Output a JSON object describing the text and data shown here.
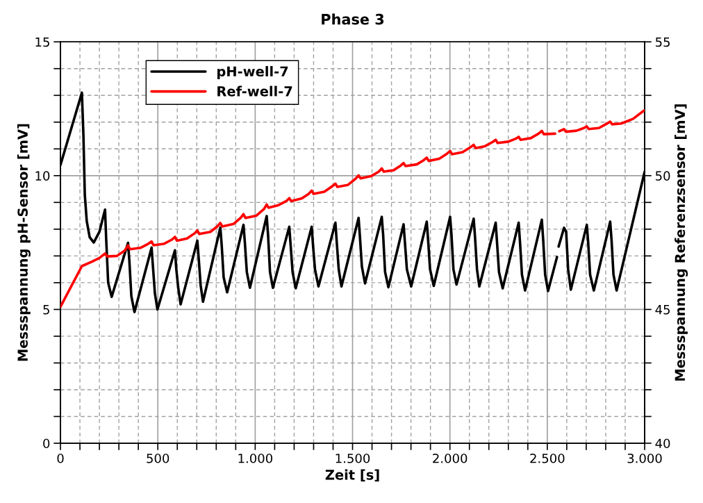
{
  "chart_data": {
    "type": "line",
    "title": "Phase 3",
    "xlabel": "Zeit [s]",
    "ylabel": "Messspannung pH-Sensor [mV]",
    "y2label": "Messspannung Referenzsensor [mV]",
    "xlim": [
      0,
      3000
    ],
    "ylim": [
      0,
      15
    ],
    "y2lim": [
      40,
      55
    ],
    "xticks": [
      0,
      {
        "value": 100,
        "label": null
      },
      {
        "value": 200,
        "label": null
      },
      {
        "value": 300,
        "label": null
      },
      {
        "value": 400,
        "label": null
      },
      500,
      {
        "value": 600,
        "label": null
      },
      {
        "value": 700,
        "label": null
      },
      {
        "value": 800,
        "label": null
      },
      {
        "value": 900,
        "label": null
      },
      {
        "value": 1000,
        "label": "1.000"
      },
      {
        "value": 1100,
        "label": null
      },
      {
        "value": 1200,
        "label": null
      },
      {
        "value": 1300,
        "label": null
      },
      {
        "value": 1400,
        "label": null
      },
      {
        "value": 1500,
        "label": "1.500"
      },
      {
        "value": 1600,
        "label": null
      },
      {
        "value": 1700,
        "label": null
      },
      {
        "value": 1800,
        "label": null
      },
      {
        "value": 1900,
        "label": null
      },
      {
        "value": 2000,
        "label": "2.000"
      },
      {
        "value": 2100,
        "label": null
      },
      {
        "value": 2200,
        "label": null
      },
      {
        "value": 2300,
        "label": null
      },
      {
        "value": 2400,
        "label": null
      },
      {
        "value": 2500,
        "label": "2.500"
      },
      {
        "value": 2600,
        "label": null
      },
      {
        "value": 2700,
        "label": null
      },
      {
        "value": 2800,
        "label": null
      },
      {
        "value": 2900,
        "label": null
      },
      {
        "value": 3000,
        "label": "3.000"
      }
    ],
    "yticks": [
      0,
      {
        "value": 1,
        "label": null
      },
      {
        "value": 2,
        "label": null
      },
      {
        "value": 3,
        "label": null
      },
      {
        "value": 4,
        "label": null
      },
      5,
      {
        "value": 6,
        "label": null
      },
      {
        "value": 7,
        "label": null
      },
      {
        "value": 8,
        "label": null
      },
      {
        "value": 9,
        "label": null
      },
      10,
      {
        "value": 11,
        "label": null
      },
      {
        "value": 12,
        "label": null
      },
      {
        "value": 13,
        "label": null
      },
      {
        "value": 14,
        "label": null
      },
      15
    ],
    "y2ticks": [
      40,
      {
        "value": 41,
        "label": null
      },
      {
        "value": 42,
        "label": null
      },
      {
        "value": 43,
        "label": null
      },
      {
        "value": 44,
        "label": null
      },
      45,
      {
        "value": 46,
        "label": null
      },
      {
        "value": 47,
        "label": null
      },
      {
        "value": 48,
        "label": null
      },
      {
        "value": 49,
        "label": null
      },
      50,
      {
        "value": 51,
        "label": null
      },
      {
        "value": 52,
        "label": null
      },
      {
        "value": 53,
        "label": null
      },
      {
        "value": 54,
        "label": null
      },
      55
    ],
    "grid": true,
    "legend": "top left",
    "marker": "none",
    "line_style": "solid",
    "series": [
      {
        "name": "pH-well-7",
        "color": "#000000",
        "x": [
          0,
          110,
          118,
          125,
          135,
          150,
          171,
          200,
          229,
          235,
          245,
          263,
          347,
          354,
          364,
          380,
          468,
          475,
          485,
          498,
          588,
          595,
          605,
          617,
          703,
          710,
          720,
          732,
          821,
          828,
          838,
          856,
          940,
          947,
          957,
          973,
          1059,
          1066,
          1076,
          1091,
          1175,
          1182,
          1192,
          1208,
          1290,
          1297,
          1307,
          1325,
          1412,
          1419,
          1429,
          1443,
          1531,
          1538,
          1548,
          1564,
          1650,
          1657,
          1667,
          1684,
          1762,
          1769,
          1779,
          1801,
          1881,
          1888,
          1898,
          1917,
          2001,
          2008,
          2018,
          2034,
          2122,
          2129,
          2139,
          2151,
          2235,
          2242,
          2252,
          2271,
          2353,
          2360,
          2370,
          2386,
          2472,
          2479,
          2489,
          2504,
          2550,
          2554,
          2558,
          2586,
          2597,
          2607,
          2621,
          2703,
          2710,
          2720,
          2739,
          2823,
          2830,
          2840,
          2856,
          3000
        ],
        "values": [
          10.4,
          13.1,
          11.5,
          9.3,
          8.3,
          7.7,
          7.5,
          7.9,
          8.73,
          7.6,
          6.0,
          5.47,
          7.49,
          6.8,
          5.5,
          4.9,
          7.31,
          6.6,
          5.6,
          5.0,
          7.21,
          6.5,
          5.8,
          5.19,
          7.57,
          6.9,
          5.9,
          5.29,
          8.06,
          7.4,
          6.2,
          5.64,
          8.16,
          7.5,
          6.4,
          5.81,
          8.49,
          7.8,
          6.4,
          5.81,
          8.09,
          7.4,
          6.4,
          5.79,
          8.09,
          7.4,
          6.5,
          5.86,
          8.24,
          7.5,
          6.5,
          5.86,
          8.42,
          7.7,
          6.6,
          5.97,
          8.46,
          7.8,
          6.4,
          5.83,
          8.18,
          7.5,
          6.5,
          5.86,
          8.28,
          7.6,
          6.5,
          5.88,
          8.46,
          7.8,
          6.5,
          5.93,
          8.39,
          7.7,
          6.5,
          5.86,
          8.24,
          7.5,
          6.4,
          5.79,
          8.24,
          7.5,
          6.3,
          5.71,
          8.35,
          7.6,
          6.3,
          5.69,
          6.96,
          null,
          7.35,
          8.05,
          7.9,
          6.5,
          5.74,
          8.16,
          7.5,
          6.3,
          5.71,
          8.28,
          7.6,
          6.3,
          5.71,
          10.15
        ]
      },
      {
        "name": "Ref-well-7",
        "color": "#ff0000",
        "axis": "y2",
        "x": [
          0,
          110,
          160,
          200,
          229,
          240,
          290,
          330,
          347,
          357,
          410,
          450,
          468,
          478,
          530,
          570,
          588,
          598,
          650,
          690,
          703,
          713,
          770,
          805,
          821,
          831,
          890,
          925,
          940,
          950,
          1005,
          1045,
          1059,
          1069,
          1120,
          1160,
          1175,
          1185,
          1240,
          1275,
          1290,
          1300,
          1355,
          1395,
          1412,
          1422,
          1475,
          1515,
          1531,
          1541,
          1595,
          1635,
          1650,
          1660,
          1710,
          1748,
          1762,
          1772,
          1830,
          1866,
          1881,
          1891,
          1945,
          1985,
          2001,
          2011,
          2065,
          2105,
          2122,
          2132,
          2180,
          2220,
          2235,
          2245,
          2300,
          2338,
          2353,
          2363,
          2415,
          2455,
          2472,
          2482,
          2540,
          2551,
          2562,
          2586,
          2596,
          2650,
          2688,
          2703,
          2713,
          2765,
          2805,
          2823,
          2833,
          2880,
          2940,
          3000
        ],
        "values": [
          45.1,
          46.62,
          46.78,
          46.92,
          47.09,
          46.98,
          47.0,
          47.2,
          47.39,
          47.25,
          47.3,
          47.45,
          47.54,
          47.4,
          47.45,
          47.6,
          47.71,
          47.57,
          47.65,
          47.85,
          47.95,
          47.82,
          47.9,
          48.1,
          48.23,
          48.1,
          48.2,
          48.42,
          48.56,
          48.42,
          48.5,
          48.75,
          48.92,
          48.8,
          48.9,
          49.05,
          49.16,
          49.05,
          49.15,
          49.32,
          49.44,
          49.32,
          49.4,
          49.6,
          49.7,
          49.58,
          49.65,
          49.88,
          50.01,
          49.9,
          49.98,
          50.15,
          50.27,
          50.15,
          50.2,
          50.38,
          50.47,
          50.36,
          50.42,
          50.58,
          50.67,
          50.55,
          50.63,
          50.82,
          50.92,
          50.8,
          50.88,
          51.06,
          51.15,
          51.03,
          51.1,
          51.26,
          51.34,
          51.22,
          51.27,
          51.38,
          51.45,
          51.34,
          51.4,
          51.57,
          51.67,
          51.55,
          51.57,
          null,
          51.66,
          51.74,
          51.64,
          51.68,
          51.78,
          51.84,
          51.74,
          51.78,
          51.94,
          52.02,
          51.92,
          51.95,
          52.12,
          52.45
        ]
      }
    ]
  }
}
